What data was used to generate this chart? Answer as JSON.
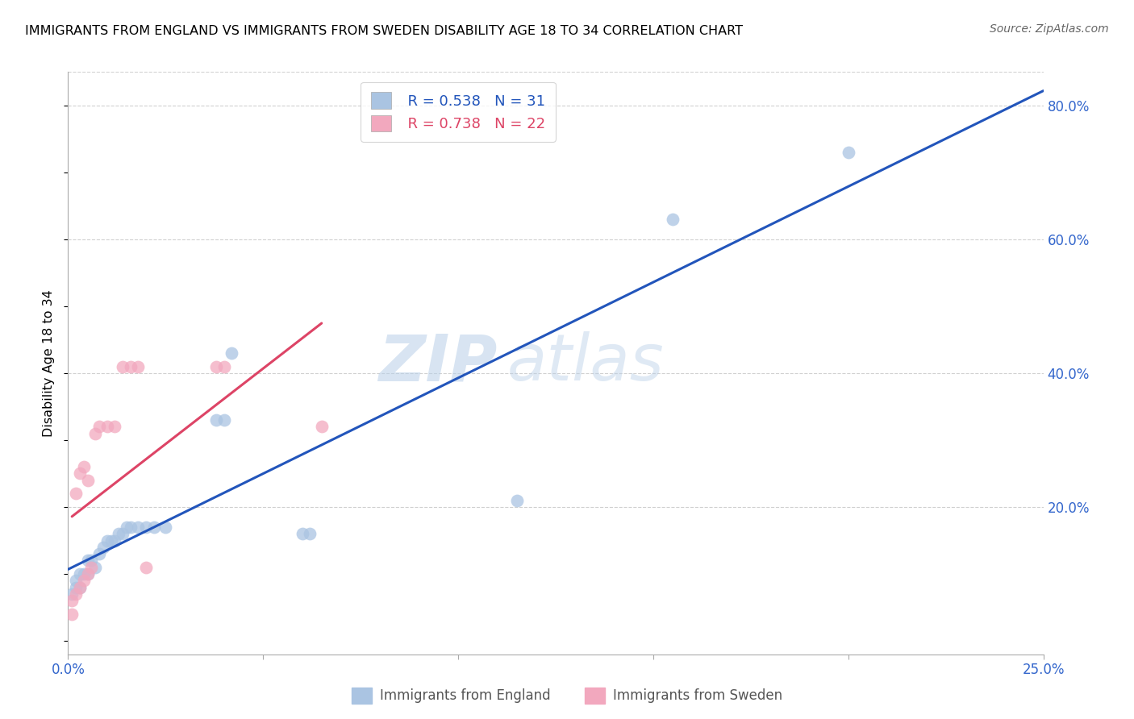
{
  "title": "IMMIGRANTS FROM ENGLAND VS IMMIGRANTS FROM SWEDEN DISABILITY AGE 18 TO 34 CORRELATION CHART",
  "source": "Source: ZipAtlas.com",
  "ylabel": "Disability Age 18 to 34",
  "x_min": 0.0,
  "x_max": 0.25,
  "y_min": -0.02,
  "y_max": 0.85,
  "england_color": "#aac4e2",
  "sweden_color": "#f2a8be",
  "england_line_color": "#2255bb",
  "sweden_line_color": "#dd4466",
  "england_R": 0.538,
  "england_N": 31,
  "sweden_R": 0.738,
  "sweden_N": 22,
  "watermark_zip": "ZIP",
  "watermark_atlas": "atlas",
  "england_x": [
    0.001,
    0.002,
    0.002,
    0.003,
    0.003,
    0.004,
    0.005,
    0.005,
    0.006,
    0.007,
    0.008,
    0.009,
    0.01,
    0.011,
    0.012,
    0.013,
    0.014,
    0.015,
    0.016,
    0.018,
    0.02,
    0.022,
    0.025,
    0.038,
    0.04,
    0.042,
    0.06,
    0.062,
    0.115,
    0.155,
    0.2
  ],
  "england_y": [
    0.07,
    0.08,
    0.09,
    0.08,
    0.1,
    0.1,
    0.1,
    0.12,
    0.12,
    0.11,
    0.13,
    0.14,
    0.15,
    0.15,
    0.15,
    0.16,
    0.16,
    0.17,
    0.17,
    0.17,
    0.17,
    0.17,
    0.17,
    0.33,
    0.33,
    0.43,
    0.16,
    0.16,
    0.21,
    0.63,
    0.73
  ],
  "sweden_x": [
    0.001,
    0.001,
    0.002,
    0.002,
    0.003,
    0.003,
    0.004,
    0.004,
    0.005,
    0.005,
    0.006,
    0.007,
    0.008,
    0.01,
    0.012,
    0.014,
    0.016,
    0.018,
    0.02,
    0.038,
    0.04,
    0.065
  ],
  "sweden_y": [
    0.04,
    0.06,
    0.07,
    0.22,
    0.08,
    0.25,
    0.26,
    0.09,
    0.1,
    0.24,
    0.11,
    0.31,
    0.32,
    0.32,
    0.32,
    0.41,
    0.41,
    0.41,
    0.11,
    0.41,
    0.41,
    0.32
  ]
}
